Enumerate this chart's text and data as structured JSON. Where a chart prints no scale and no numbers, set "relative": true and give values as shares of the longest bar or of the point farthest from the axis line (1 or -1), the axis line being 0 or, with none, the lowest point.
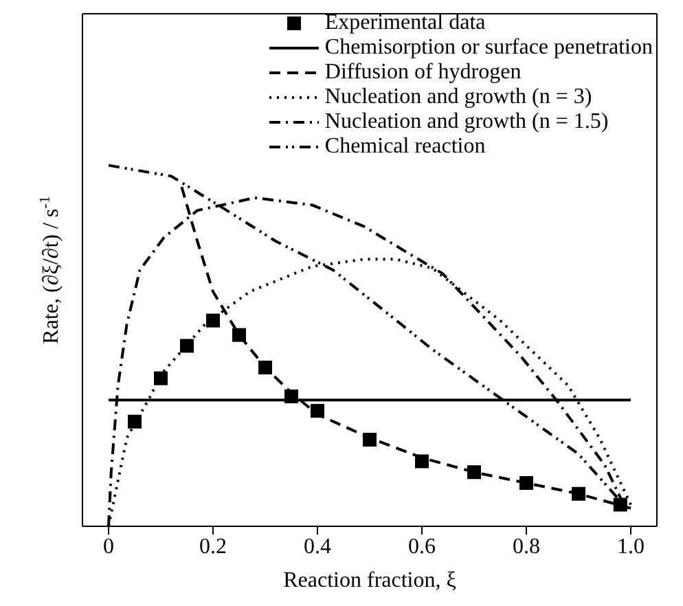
{
  "chart_data": {
    "type": "line",
    "relative": true,
    "xlabel": "Reaction fraction, ξ",
    "ylabel": "Rate, (∂ξ/∂t) / s$^{-1}$",
    "xlim": [
      -0.05,
      1.05
    ],
    "xticks": [
      0,
      0.2,
      0.4,
      0.6,
      {
        "value": 0.8,
        "label": "0.8"
      },
      {
        "value": 1,
        "label": "1.0"
      }
    ],
    "legend": "top right",
    "series": [
      {
        "name": "Experimental data",
        "type": "scatter",
        "marker": "square",
        "color": "#000000",
        "x": [
          0.05,
          0.1,
          0.15,
          0.2,
          0.25,
          0.3,
          0.35,
          0.4,
          0.5,
          0.6,
          0.7,
          0.8,
          0.9,
          0.98
        ],
        "values": [
          0.29,
          0.41,
          0.5,
          0.57,
          0.53,
          0.44,
          0.36,
          0.32,
          0.24,
          0.18,
          0.15,
          0.12,
          0.09,
          0.06
        ]
      },
      {
        "name": "Chemisorption or surface penetration",
        "line_style": "solid",
        "color": "#000000",
        "x": [
          0,
          1
        ],
        "values": [
          0.35,
          0.35
        ]
      },
      {
        "name": "Diffusion of hydrogen",
        "line_style": "dashed",
        "color": "#000000",
        "x": [
          0.14,
          0.17,
          0.2,
          0.25,
          0.3,
          0.35,
          0.4,
          0.5,
          0.6,
          0.7,
          0.8,
          0.9,
          1
        ],
        "values": [
          0.94,
          0.79,
          0.65,
          0.53,
          0.44,
          0.37,
          0.31,
          0.245,
          0.19,
          0.15,
          0.12,
          0.09,
          0.05
        ]
      },
      {
        "name": "Nucleation and growth (n = 3)",
        "line_style": "dotted",
        "color": "#000000",
        "x": [
          0,
          0.035,
          0.08,
          0.1,
          0.185,
          0.27,
          0.39,
          0.49,
          0.55,
          0.62,
          0.75,
          0.88,
          0.94,
          1
        ],
        "values": [
          0,
          0.245,
          0.36,
          0.42,
          0.56,
          0.65,
          0.72,
          0.74,
          0.74,
          0.715,
          0.57,
          0.39,
          0.245,
          0.06
        ]
      },
      {
        "name": "Nucleation and growth (n = 1.5)",
        "line_style": "dashdot",
        "color": "#000000",
        "x": [
          0,
          0.005,
          0.018,
          0.035,
          0.06,
          0.106,
          0.17,
          0.28,
          0.39,
          0.49,
          0.57,
          0.64,
          0.79,
          0.86,
          0.95,
          0.99
        ],
        "values": [
          0,
          0.15,
          0.39,
          0.56,
          0.71,
          0.8,
          0.875,
          0.91,
          0.89,
          0.83,
          0.76,
          0.7,
          0.47,
          0.345,
          0.17,
          0.05
        ]
      },
      {
        "name": "Chemical reaction",
        "line_style": "dashdotdot",
        "color": "#000000",
        "x": [
          0,
          0.12,
          0.21,
          0.32,
          0.43,
          0.56,
          0.62,
          0.76,
          0.9,
          0.98
        ],
        "values": [
          1,
          0.97,
          0.89,
          0.79,
          0.71,
          0.56,
          0.49,
          0.345,
          0.2,
          0.07
        ]
      }
    ]
  }
}
